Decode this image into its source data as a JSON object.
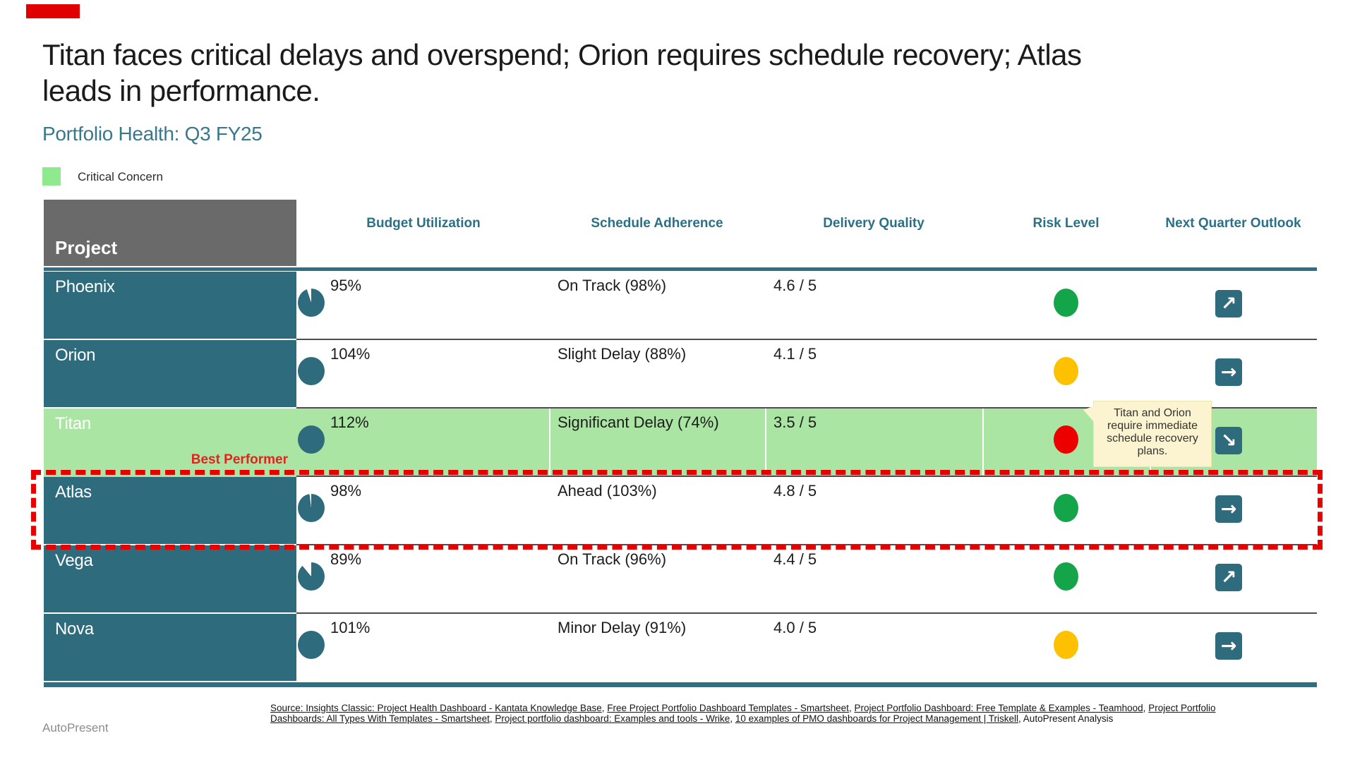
{
  "slide": {
    "accent_color": "#E00000",
    "title_lines": [
      "Titan faces critical delays and overspend; Orion requires schedule recovery; Atlas",
      "leads in performance."
    ],
    "subtitle": "Portfolio Health: Q3 FY25",
    "legend": {
      "label": "Critical Concern",
      "color": "#8FE98F"
    }
  },
  "colors": {
    "teal": "#2E6B7C",
    "teal_text": "#2C7086",
    "green_dot": "#14A44A",
    "yellow_dot": "#FDC101",
    "red_dot": "#EC0000",
    "highlight_row": "#ABE5A3",
    "callout_bg": "#FCF4D0",
    "dashed_border": "#E60000"
  },
  "table": {
    "project_header": "Project",
    "columns": [
      "Budget Utilization",
      "Schedule Adherence",
      "Delivery Quality",
      "Risk Level",
      "Next Quarter Outlook"
    ],
    "rows": [
      {
        "project": "Phoenix",
        "budget": "95%",
        "budget_pct": 95,
        "schedule": "On Track (98%)",
        "quality": "4.6 / 5",
        "risk": "low",
        "risk_color": "#14A44A",
        "outlook": "improving",
        "outlook_glyph": "↗",
        "row_bg": "#FFFFFF",
        "project_bg": "#2E6B7C"
      },
      {
        "project": "Orion",
        "budget": "104%",
        "budget_pct": 104,
        "schedule": "Slight Delay (88%)",
        "quality": "4.1 / 5",
        "risk": "medium",
        "risk_color": "#FDC101",
        "outlook": "steady",
        "outlook_glyph": "→",
        "row_bg": "#FFFFFF",
        "project_bg": "#2E6B7C"
      },
      {
        "project": "Titan",
        "budget": "112%",
        "budget_pct": 112,
        "schedule": "Significant Delay (74%)",
        "quality": "3.5 / 5",
        "risk": "high",
        "risk_color": "#EC0000",
        "outlook": "declining",
        "outlook_glyph": "↘",
        "row_bg": "#ABE5A3",
        "project_bg": "#ABE5A3"
      },
      {
        "project": "Atlas",
        "budget": "98%",
        "budget_pct": 98,
        "schedule": "Ahead (103%)",
        "quality": "4.8 / 5",
        "risk": "low",
        "risk_color": "#14A44A",
        "outlook": "steady",
        "outlook_glyph": "→",
        "row_bg": "#FFFFFF",
        "project_bg": "#2E6B7C"
      },
      {
        "project": "Vega",
        "budget": "89%",
        "budget_pct": 89,
        "schedule": "On Track (96%)",
        "quality": "4.4 / 5",
        "risk": "low",
        "risk_color": "#14A44A",
        "outlook": "improving",
        "outlook_glyph": "↗",
        "row_bg": "#FFFFFF",
        "project_bg": "#2E6B7C"
      },
      {
        "project": "Nova",
        "budget": "101%",
        "budget_pct": 101,
        "schedule": "Minor Delay (91%)",
        "quality": "4.0 / 5",
        "risk": "medium",
        "risk_color": "#FDC101",
        "outlook": "steady",
        "outlook_glyph": "→",
        "row_bg": "#FFFFFF",
        "project_bg": "#2E6B7C"
      }
    ]
  },
  "annotations": {
    "best_performer": "Best Performer",
    "callout": "Titan and Orion require immediate schedule recovery plans."
  },
  "footer": {
    "brand": "AutoPresent",
    "segments": [
      {
        "t": "Source: Insights Classic: Project Health Dashboard - Kantata Knowledge Base",
        "link": true
      },
      {
        "t": ", ",
        "link": false
      },
      {
        "t": "Free Project Portfolio Dashboard Templates - Smartsheet",
        "link": true
      },
      {
        "t": ", ",
        "link": false
      },
      {
        "t": "Project Portfolio Dashboard: Free Template & Examples - Teamhood",
        "link": true
      },
      {
        "t": ", ",
        "link": false
      },
      {
        "t": "Project Portfolio Dashboards: All Types With Templates - Smartsheet",
        "link": true
      },
      {
        "t": ", ",
        "link": false
      },
      {
        "t": "Project portfolio dashboard: Examples and tools - Wrike",
        "link": true
      },
      {
        "t": ", ",
        "link": false
      },
      {
        "t": "10 examples of PMO dashboards for Project Management | Triskell",
        "link": true
      },
      {
        "t": ", AutoPresent Analysis",
        "link": false
      }
    ]
  },
  "chart_data": {
    "type": "table",
    "title": "Portfolio Health: Q3 FY25",
    "columns": [
      "Project",
      "Budget Utilization",
      "Schedule Adherence",
      "Delivery Quality",
      "Risk Level",
      "Next Quarter Outlook"
    ],
    "rows": [
      [
        "Phoenix",
        "95%",
        "On Track (98%)",
        "4.6 / 5",
        "green",
        "improving"
      ],
      [
        "Orion",
        "104%",
        "Slight Delay (88%)",
        "4.1 / 5",
        "yellow",
        "steady"
      ],
      [
        "Titan",
        "112%",
        "Significant Delay (74%)",
        "3.5 / 5",
        "red",
        "declining"
      ],
      [
        "Atlas",
        "98%",
        "Ahead (103%)",
        "4.8 / 5",
        "green",
        "steady"
      ],
      [
        "Vega",
        "89%",
        "On Track (96%)",
        "4.4 / 5",
        "green",
        "improving"
      ],
      [
        "Nova",
        "101%",
        "Minor Delay (91%)",
        "4.0 / 5",
        "yellow",
        "steady"
      ]
    ],
    "highlighted_row": "Titan",
    "best_performer_row": "Atlas",
    "legend": [
      "Critical Concern"
    ]
  }
}
